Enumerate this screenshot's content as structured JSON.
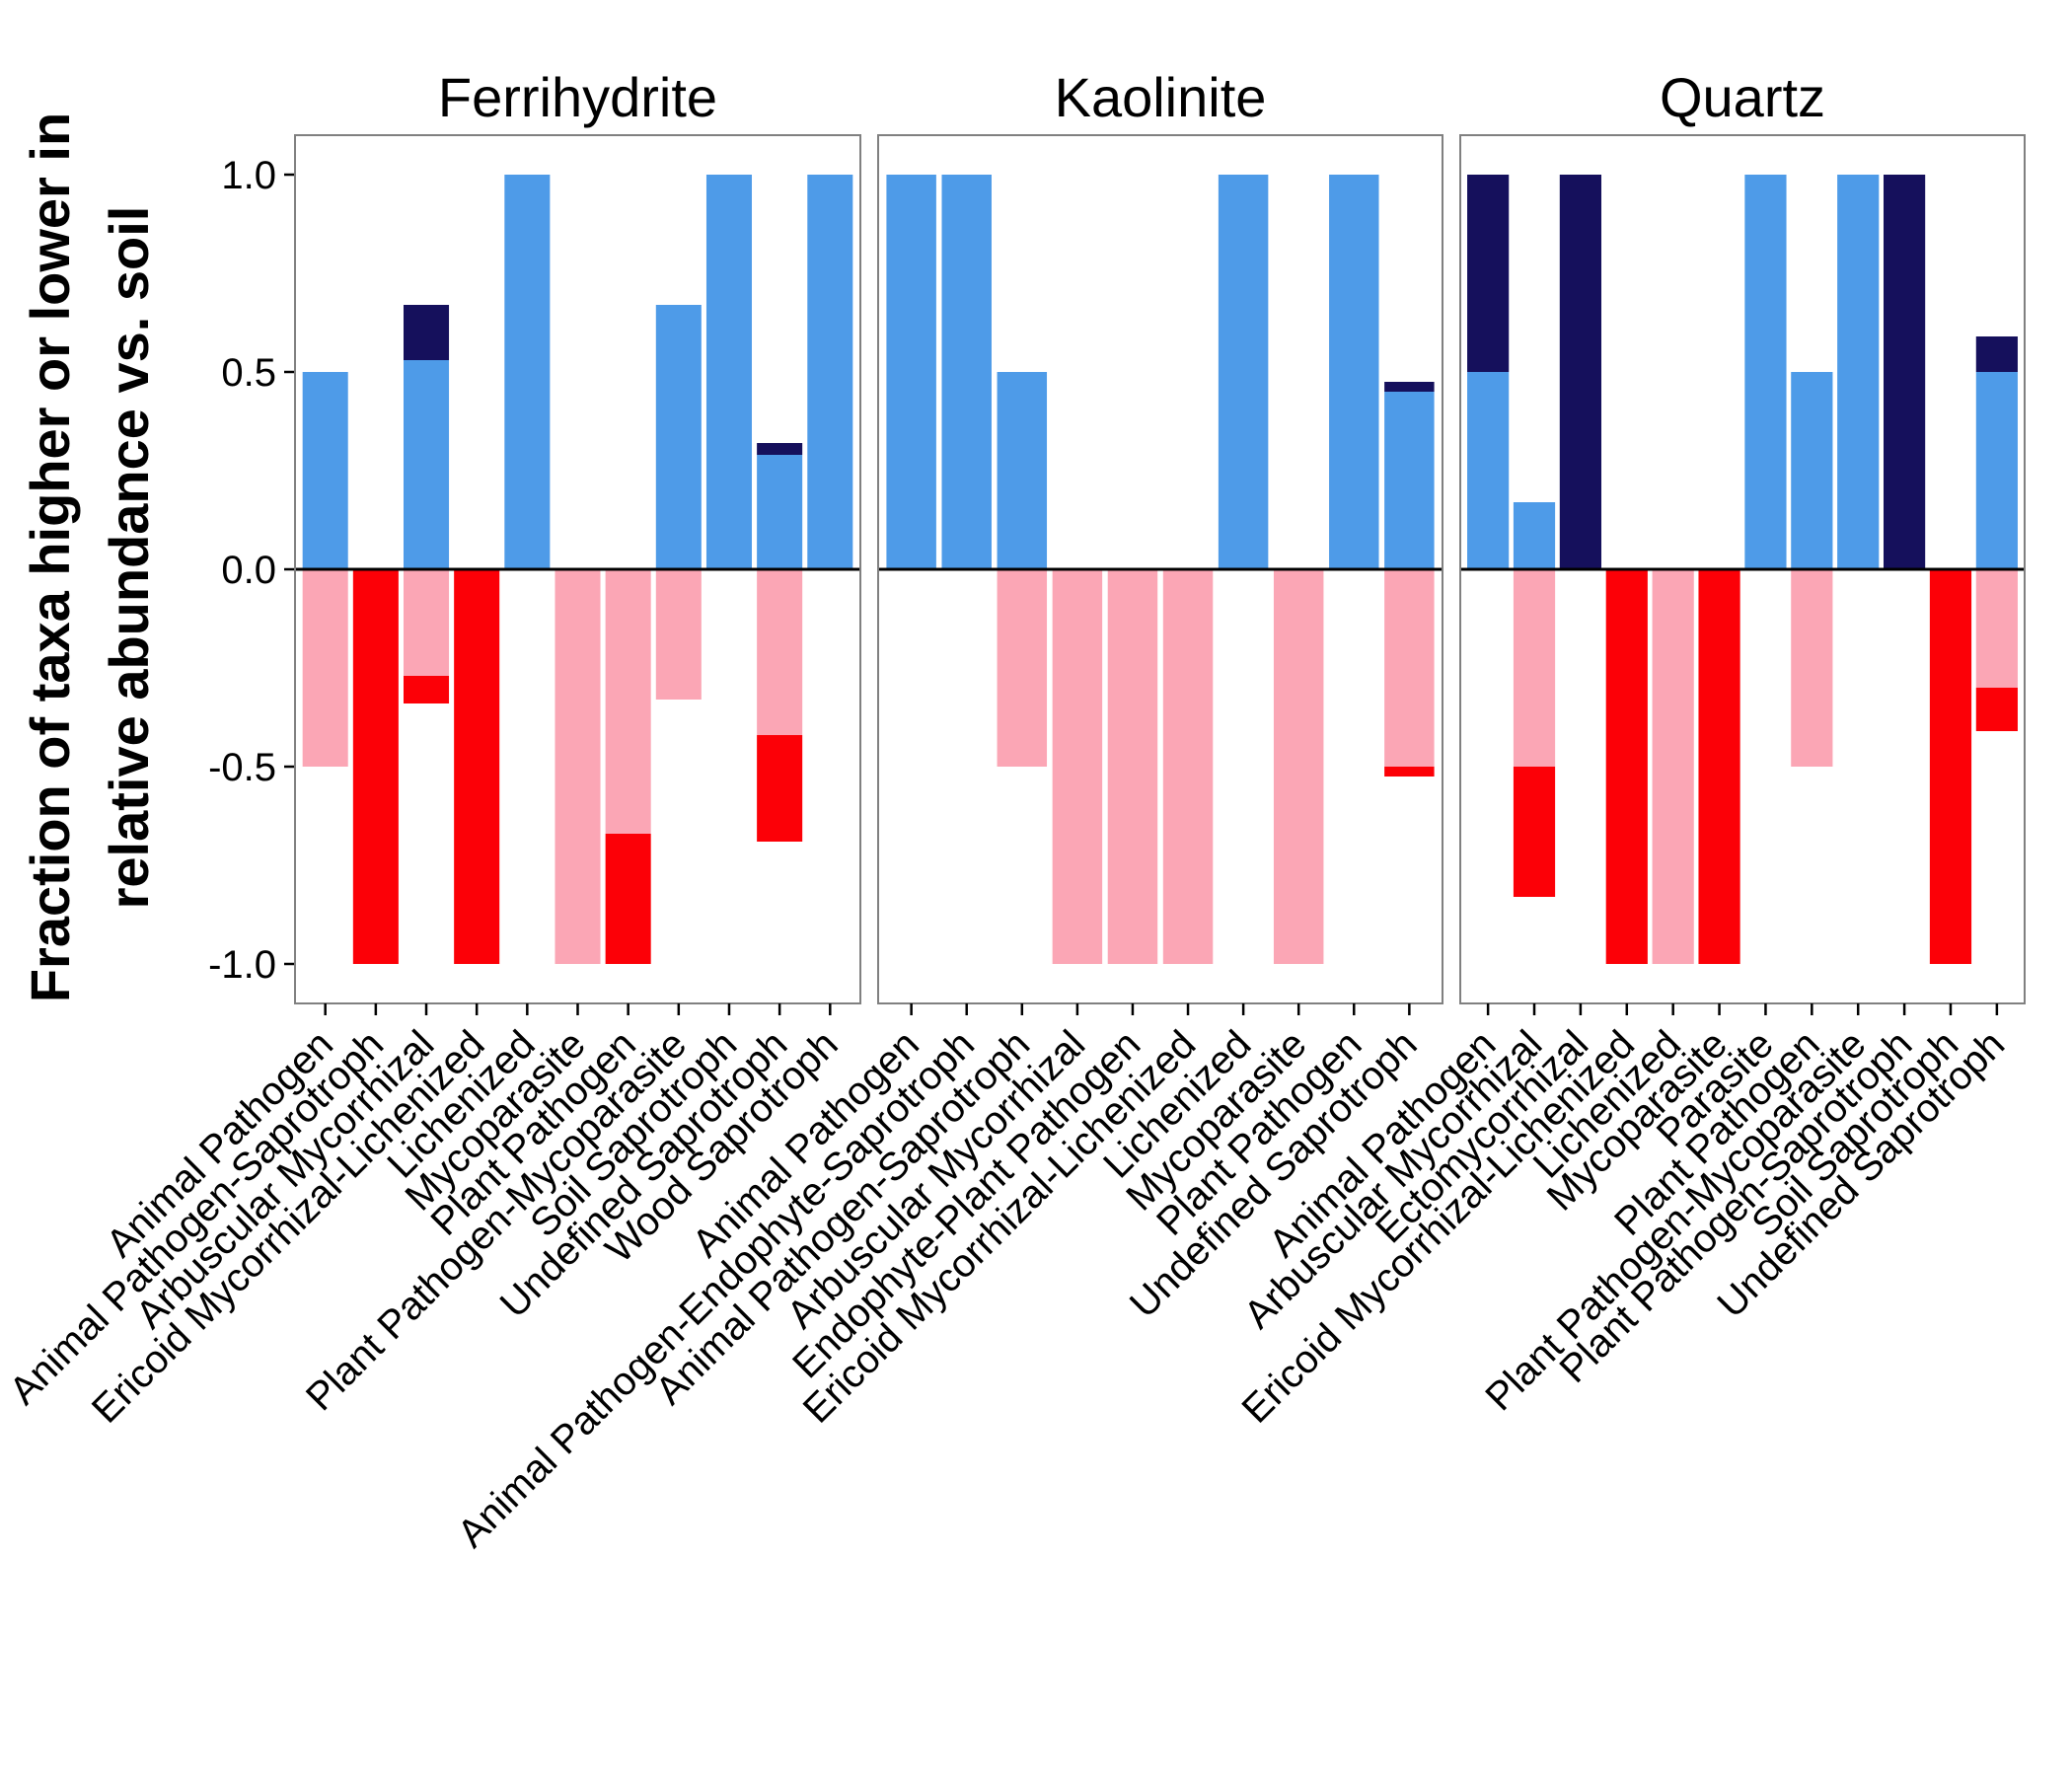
{
  "colors": {
    "higher_main": "#4E9BE8",
    "higher_extra": "#15105C",
    "lower_main": "#FBA6B5",
    "lower_extra": "#FC0007",
    "panel_border": "#808080",
    "zero_line": "#000000"
  },
  "chart_data": {
    "type": "bar",
    "stacked": true,
    "ylabel_line1": "Fraction of taxa higher or lower in",
    "ylabel_line2": "relative abundance vs. soil",
    "ylim": [
      -1.1,
      1.1
    ],
    "yticks": [
      1.0,
      0.5,
      0.0,
      -0.5,
      -1.0
    ],
    "ytick_labels": [
      "1.0",
      "0.5",
      "0.0",
      "-0.5",
      "-1.0"
    ],
    "grid": false,
    "legend": "none",
    "facets": [
      {
        "title": "Ferrihydrite",
        "categories": [
          "Animal Pathogen",
          "Animal Pathogen-Saprotroph",
          "Arbuscular Mycorrhizal",
          "Ericoid Mycorrhizal-Lichenized",
          "Lichenized",
          "Mycoparasite",
          "Plant Pathogen",
          "Plant Pathogen-Mycoparasite",
          "Soil Saprotroph",
          "Undefined Saprotroph",
          "Wood Saprotroph"
        ],
        "series": [
          {
            "name": "",
            "color_key": "higher_main",
            "values": [
              0.5,
              0,
              0.53,
              0,
              1.0,
              0,
              0,
              0.67,
              1.0,
              0.29,
              1.0
            ]
          },
          {
            "name": "",
            "color_key": "higher_extra",
            "values": [
              0,
              0,
              0.14,
              0,
              0,
              0,
              0,
              0,
              0,
              0.03,
              0
            ]
          },
          {
            "name": "",
            "color_key": "lower_main",
            "values": [
              -0.5,
              0,
              -0.27,
              0,
              0,
              -1.0,
              -0.67,
              -0.33,
              0,
              -0.42,
              0
            ]
          },
          {
            "name": "",
            "color_key": "lower_extra",
            "values": [
              0,
              -1.0,
              -0.07,
              -1.0,
              0,
              0,
              -0.33,
              0,
              0,
              -0.27,
              0
            ]
          }
        ]
      },
      {
        "title": "Kaolinite",
        "categories": [
          "Animal Pathogen",
          "Animal Pathogen-Endophyte-Saprotroph",
          "Animal Pathogen-Saprotroph",
          "Arbuscular Mycorrhizal",
          "Endophyte-Plant Pathogen",
          "Ericoid Mycorrhizal-Lichenized",
          "Lichenized",
          "Mycoparasite",
          "Plant Pathogen",
          "Undefined Saprotroph"
        ],
        "series": [
          {
            "name": "",
            "color_key": "higher_main",
            "values": [
              1.0,
              1.0,
              0.5,
              0,
              0,
              0,
              1.0,
              0,
              1.0,
              0.45
            ]
          },
          {
            "name": "",
            "color_key": "higher_extra",
            "values": [
              0,
              0,
              0,
              0,
              0,
              0,
              0,
              0,
              0,
              0.025
            ]
          },
          {
            "name": "",
            "color_key": "lower_main",
            "values": [
              0,
              0,
              -0.5,
              -1.0,
              -1.0,
              -1.0,
              0,
              -1.0,
              0,
              -0.5
            ]
          },
          {
            "name": "",
            "color_key": "lower_extra",
            "values": [
              0,
              0,
              0,
              0,
              0,
              0,
              0,
              0,
              0,
              -0.025
            ]
          }
        ]
      },
      {
        "title": "Quartz",
        "categories": [
          "Animal Pathogen",
          "Arbuscular Mycorrhizal",
          "Ectomycorrhizal",
          "Ericoid Mycorrhizal-Lichenized",
          "Lichenized",
          "Mycoparasite",
          "Parasite",
          "Plant Pathogen",
          "Plant Pathogen-Mycoparasite",
          "Plant Pathogen-Saprotroph",
          "Soil Saprotroph",
          "Undefined Saprotroph"
        ],
        "series": [
          {
            "name": "",
            "color_key": "higher_main",
            "values": [
              0.5,
              0.17,
              0,
              0,
              0,
              0,
              1.0,
              0.5,
              1.0,
              0,
              0,
              0.5
            ]
          },
          {
            "name": "",
            "color_key": "higher_extra",
            "values": [
              0.5,
              0,
              1.0,
              0,
              0,
              0,
              0,
              0,
              0,
              1.0,
              0,
              0.09
            ]
          },
          {
            "name": "",
            "color_key": "lower_main",
            "values": [
              0,
              -0.5,
              0,
              0,
              -1.0,
              0,
              0,
              -0.5,
              0,
              0,
              0,
              -0.3
            ]
          },
          {
            "name": "",
            "color_key": "lower_extra",
            "values": [
              0,
              -0.33,
              0,
              -1.0,
              0,
              -1.0,
              0,
              0,
              0,
              0,
              -1.0,
              -0.11
            ]
          }
        ]
      }
    ]
  }
}
